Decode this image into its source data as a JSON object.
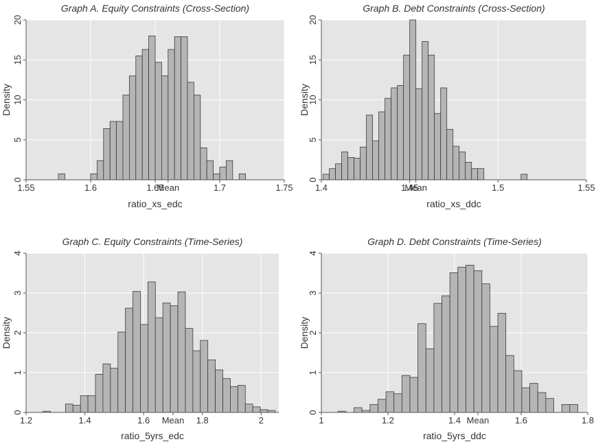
{
  "chart_data": [
    {
      "type": "bar",
      "title": "Graph A. Equity Constraints (Cross-Section)",
      "xlabel": "ratio_xs_edc",
      "ylabel": "Density",
      "xlim": [
        1.55,
        1.75
      ],
      "ylim": [
        0,
        20
      ],
      "xticks": [
        "1.55",
        "1.6",
        "1.65",
        "1.7",
        "1.75"
      ],
      "yticks": [
        "0",
        "5",
        "10",
        "15",
        "20"
      ],
      "mean_label": "Mean",
      "mean_value": 1.66,
      "bin_width": 0.005,
      "bins": [
        {
          "x": 1.5775,
          "y": 0.75
        },
        {
          "x": 1.6025,
          "y": 0.75
        },
        {
          "x": 1.6075,
          "y": 2.4
        },
        {
          "x": 1.6125,
          "y": 6.4
        },
        {
          "x": 1.6175,
          "y": 7.3
        },
        {
          "x": 1.6225,
          "y": 7.3
        },
        {
          "x": 1.6275,
          "y": 10.6
        },
        {
          "x": 1.6325,
          "y": 13.0
        },
        {
          "x": 1.6375,
          "y": 15.5
        },
        {
          "x": 1.6425,
          "y": 16.3
        },
        {
          "x": 1.6475,
          "y": 18.0
        },
        {
          "x": 1.6525,
          "y": 14.7
        },
        {
          "x": 1.6575,
          "y": 13.0
        },
        {
          "x": 1.6625,
          "y": 16.3
        },
        {
          "x": 1.6675,
          "y": 17.9
        },
        {
          "x": 1.6725,
          "y": 17.9
        },
        {
          "x": 1.6775,
          "y": 12.2
        },
        {
          "x": 1.6825,
          "y": 10.6
        },
        {
          "x": 1.6875,
          "y": 4.0
        },
        {
          "x": 1.6925,
          "y": 2.4
        },
        {
          "x": 1.6975,
          "y": 0.75
        },
        {
          "x": 1.7025,
          "y": 1.6
        },
        {
          "x": 1.7075,
          "y": 2.4
        },
        {
          "x": 1.7175,
          "y": 0.75
        }
      ]
    },
    {
      "type": "bar",
      "title": "Graph B. Debt Constraints (Cross-Section)",
      "xlabel": "ratio_xs_ddc",
      "ylabel": "Density",
      "xlim": [
        1.4,
        1.55
      ],
      "ylim": [
        0,
        20
      ],
      "xticks": [
        "1.4",
        "1.45",
        "1.5",
        "1.55"
      ],
      "yticks": [
        "0",
        "5",
        "10",
        "15",
        "20"
      ],
      "mean_label": "Mean",
      "mean_value": 1.4535,
      "bin_width": 0.0035,
      "bins": [
        {
          "x": 1.40275,
          "y": 0.7
        },
        {
          "x": 1.40625,
          "y": 1.4
        },
        {
          "x": 1.40975,
          "y": 2.0
        },
        {
          "x": 1.41325,
          "y": 3.5
        },
        {
          "x": 1.41675,
          "y": 2.8
        },
        {
          "x": 1.42025,
          "y": 2.7
        },
        {
          "x": 1.42375,
          "y": 4.1
        },
        {
          "x": 1.42725,
          "y": 8.1
        },
        {
          "x": 1.43075,
          "y": 4.9
        },
        {
          "x": 1.43425,
          "y": 8.5
        },
        {
          "x": 1.43775,
          "y": 10.2
        },
        {
          "x": 1.44125,
          "y": 11.5
        },
        {
          "x": 1.44475,
          "y": 11.8
        },
        {
          "x": 1.44825,
          "y": 15.6
        },
        {
          "x": 1.45175,
          "y": 20.0
        },
        {
          "x": 1.45525,
          "y": 11.4
        },
        {
          "x": 1.45875,
          "y": 17.3
        },
        {
          "x": 1.46225,
          "y": 15.6
        },
        {
          "x": 1.46575,
          "y": 8.3
        },
        {
          "x": 1.46925,
          "y": 11.5
        },
        {
          "x": 1.47275,
          "y": 6.3
        },
        {
          "x": 1.47625,
          "y": 4.2
        },
        {
          "x": 1.47975,
          "y": 3.5
        },
        {
          "x": 1.48325,
          "y": 2.2
        },
        {
          "x": 1.48675,
          "y": 1.4
        },
        {
          "x": 1.49025,
          "y": 1.4
        },
        {
          "x": 1.51475,
          "y": 0.7
        }
      ]
    },
    {
      "type": "bar",
      "title": "Graph C. Equity Constraints (Time-Series)",
      "xlabel": "ratio_5yrs_edc",
      "ylabel": "Density",
      "xlim": [
        1.2,
        2.06
      ],
      "ylim": [
        0,
        4
      ],
      "xticks": [
        "1.2",
        "1.4",
        "1.6",
        "1.8",
        "2"
      ],
      "yticks": [
        "0",
        "1",
        "2",
        "3",
        "4"
      ],
      "mean_label": "Mean",
      "mean_value": 1.7,
      "bin_width": 0.0255,
      "bins": [
        {
          "x": 1.2703,
          "y": 0.03
        },
        {
          "x": 1.3468,
          "y": 0.21
        },
        {
          "x": 1.3723,
          "y": 0.18
        },
        {
          "x": 1.3978,
          "y": 0.42
        },
        {
          "x": 1.4233,
          "y": 0.42
        },
        {
          "x": 1.4488,
          "y": 0.96
        },
        {
          "x": 1.4743,
          "y": 1.22
        },
        {
          "x": 1.4998,
          "y": 1.11
        },
        {
          "x": 1.5253,
          "y": 2.02
        },
        {
          "x": 1.5508,
          "y": 2.62
        },
        {
          "x": 1.5763,
          "y": 3.04
        },
        {
          "x": 1.6018,
          "y": 2.21
        },
        {
          "x": 1.6273,
          "y": 3.28
        },
        {
          "x": 1.6528,
          "y": 2.38
        },
        {
          "x": 1.6783,
          "y": 2.75
        },
        {
          "x": 1.7038,
          "y": 2.68
        },
        {
          "x": 1.7293,
          "y": 3.03
        },
        {
          "x": 1.7548,
          "y": 2.11
        },
        {
          "x": 1.7803,
          "y": 1.55
        },
        {
          "x": 1.8058,
          "y": 1.81
        },
        {
          "x": 1.8313,
          "y": 1.32
        },
        {
          "x": 1.8568,
          "y": 1.07
        },
        {
          "x": 1.8823,
          "y": 0.85
        },
        {
          "x": 1.9078,
          "y": 0.65
        },
        {
          "x": 1.9333,
          "y": 0.68
        },
        {
          "x": 1.9588,
          "y": 0.21
        },
        {
          "x": 1.9843,
          "y": 0.14
        },
        {
          "x": 2.0098,
          "y": 0.07
        },
        {
          "x": 2.0353,
          "y": 0.05
        }
      ]
    },
    {
      "type": "bar",
      "title": "Graph D. Debt Constraints (Time-Series)",
      "xlabel": "ratio_5yrs_ddc",
      "ylabel": "Density",
      "xlim": [
        1.0,
        1.8
      ],
      "ylim": [
        0,
        4
      ],
      "xticks": [
        "1",
        "1.2",
        "1.4",
        "1.6",
        "1.8"
      ],
      "yticks": [
        "0",
        "1",
        "2",
        "3",
        "4"
      ],
      "mean_label": "Mean",
      "mean_value": 1.47,
      "bin_width": 0.024,
      "bins": [
        {
          "x": 1.062,
          "y": 0.03
        },
        {
          "x": 1.11,
          "y": 0.12
        },
        {
          "x": 1.134,
          "y": 0.05
        },
        {
          "x": 1.158,
          "y": 0.2
        },
        {
          "x": 1.182,
          "y": 0.33
        },
        {
          "x": 1.206,
          "y": 0.52
        },
        {
          "x": 1.23,
          "y": 0.47
        },
        {
          "x": 1.254,
          "y": 0.93
        },
        {
          "x": 1.278,
          "y": 0.88
        },
        {
          "x": 1.302,
          "y": 2.23
        },
        {
          "x": 1.326,
          "y": 1.6
        },
        {
          "x": 1.35,
          "y": 2.74
        },
        {
          "x": 1.374,
          "y": 2.93
        },
        {
          "x": 1.398,
          "y": 3.51
        },
        {
          "x": 1.422,
          "y": 3.65
        },
        {
          "x": 1.446,
          "y": 3.7
        },
        {
          "x": 1.47,
          "y": 3.56
        },
        {
          "x": 1.494,
          "y": 3.23
        },
        {
          "x": 1.518,
          "y": 2.16
        },
        {
          "x": 1.542,
          "y": 2.49
        },
        {
          "x": 1.566,
          "y": 1.43
        },
        {
          "x": 1.59,
          "y": 1.05
        },
        {
          "x": 1.614,
          "y": 0.62
        },
        {
          "x": 1.638,
          "y": 0.73
        },
        {
          "x": 1.662,
          "y": 0.5
        },
        {
          "x": 1.686,
          "y": 0.35
        },
        {
          "x": 1.734,
          "y": 0.2
        },
        {
          "x": 1.758,
          "y": 0.2
        }
      ]
    }
  ]
}
